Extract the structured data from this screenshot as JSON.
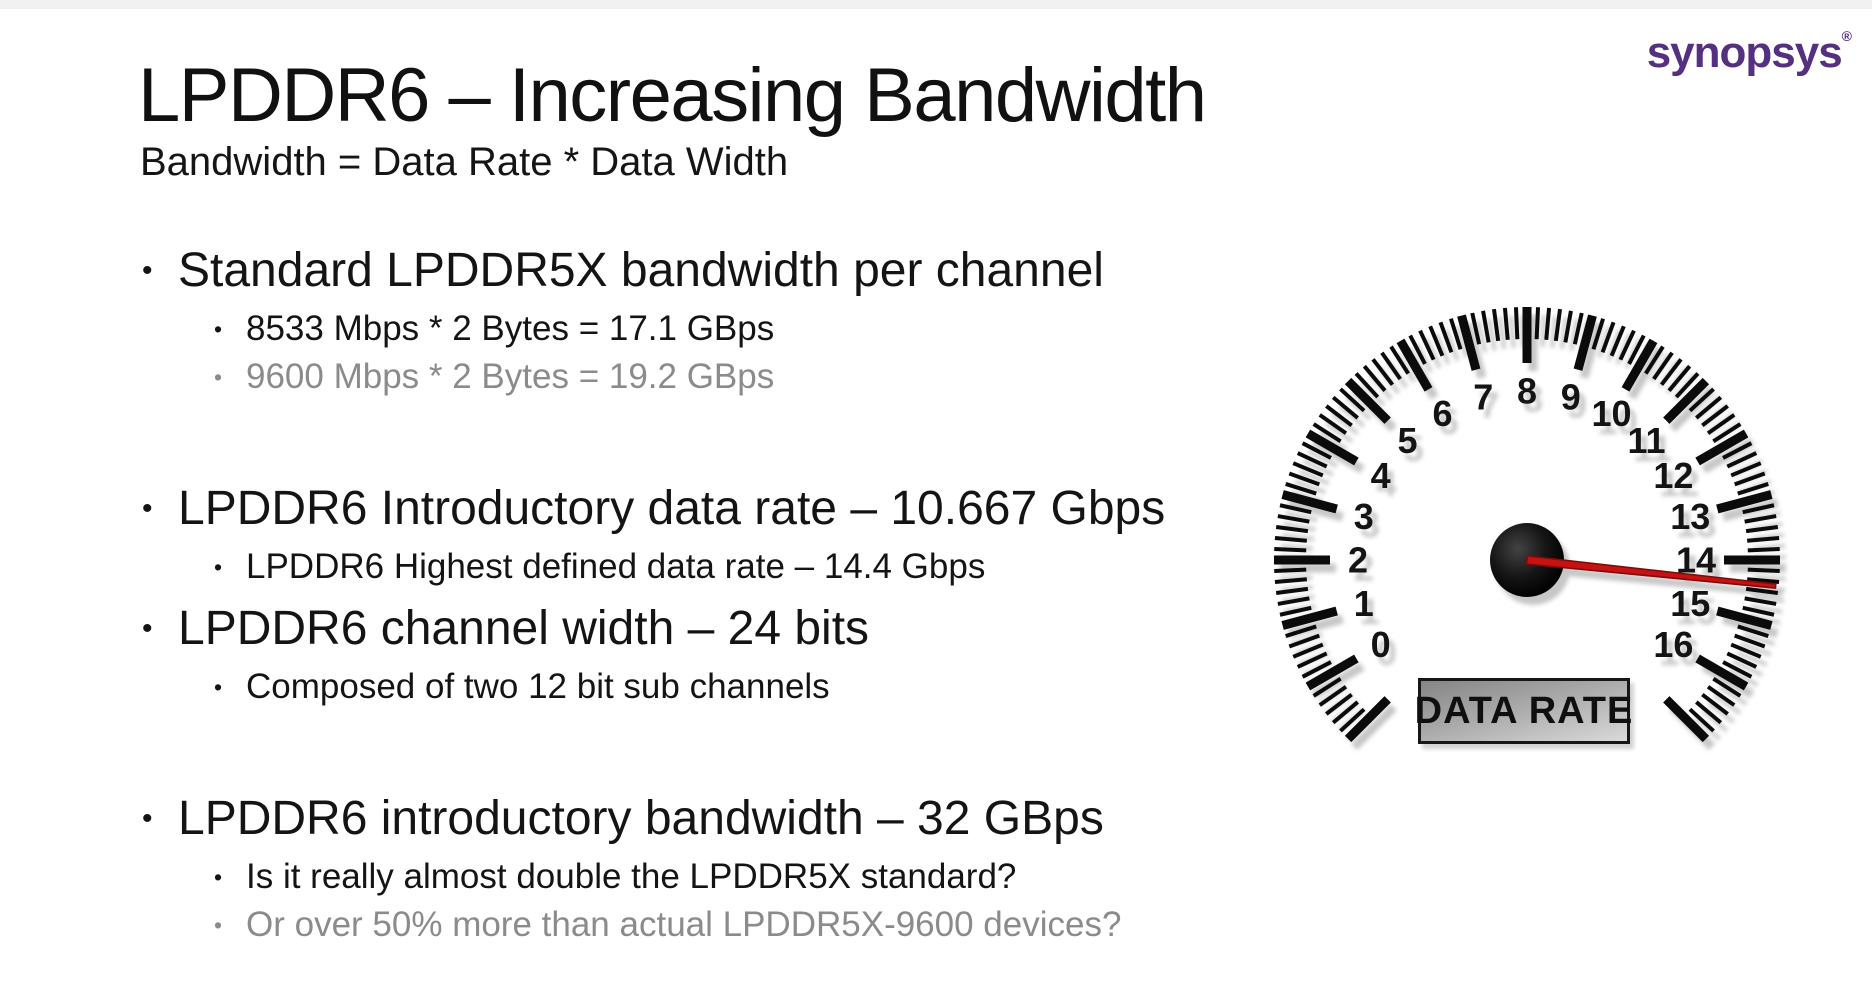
{
  "logo": {
    "text": "synopsys",
    "registered": "®",
    "color": "#553080"
  },
  "slide": {
    "title": "LPDDR6 – Increasing Bandwidth",
    "subtitle": "Bandwidth = Data Rate * Data Width"
  },
  "sections": [
    [
      {
        "text": "Standard LPDDR5X bandwidth per channel",
        "subs": [
          {
            "text": "8533 Mbps * 2 Bytes = 17.1 GBps",
            "muted": false
          },
          {
            "text": "9600 Mbps * 2 Bytes = 19.2 GBps",
            "muted": true
          }
        ]
      }
    ],
    [
      {
        "text": "LPDDR6 Introductory data rate – 10.667 Gbps",
        "subs": [
          {
            "text": "LPDDR6 Highest defined data rate – 14.4 Gbps",
            "muted": false
          }
        ]
      },
      {
        "text": "LPDDR6 channel width – 24 bits",
        "subs": [
          {
            "text": "Composed of two 12 bit sub channels",
            "muted": false
          }
        ]
      }
    ],
    [
      {
        "text": "LPDDR6 introductory bandwidth – 32 GBps",
        "subs": [
          {
            "text": "Is it really almost double the LPDDR5X standard?",
            "muted": false
          },
          {
            "text": "Or over 50% more than actual LPDDR5X-9600 devices?",
            "muted": true
          }
        ]
      }
    ]
  ],
  "gauge": {
    "label": "DATA RATE",
    "min": 0,
    "max": 16,
    "value": 14.4,
    "tick_labels": [
      "0",
      "1",
      "2",
      "3",
      "4",
      "5",
      "6",
      "7",
      "8",
      "9",
      "10",
      "11",
      "12",
      "13",
      "14",
      "15",
      "16"
    ],
    "minor_divisions": 6,
    "overrun_units": 1,
    "colors": {
      "tick": "#0b0b0b",
      "number": "#141414",
      "needle": "#c81111",
      "needle_edge": "#7e0c0c",
      "hub_dark": "#000000",
      "hub_light": "#434343"
    }
  },
  "colors": {
    "text": "#141414",
    "muted": "#8b8b8b",
    "background": "#ffffff"
  }
}
